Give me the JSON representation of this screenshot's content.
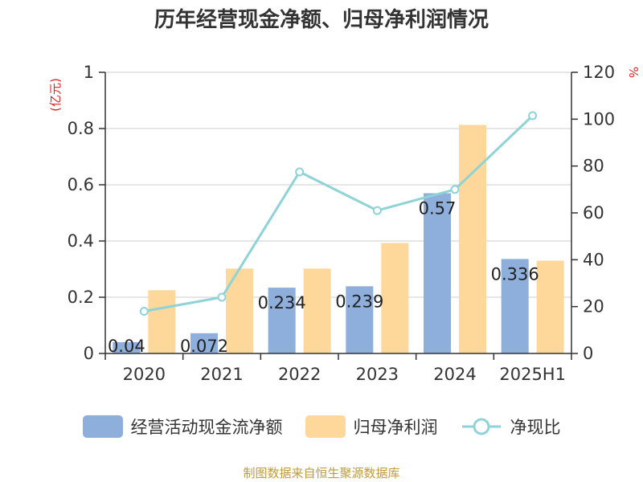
{
  "colors": {
    "cash": "#8eaedc",
    "profit": "#fdd89a",
    "ratio": "#8ed3d8",
    "unit": "#e02020",
    "grid": "#cccccc",
    "text": "#333333"
  },
  "chart_data": {
    "type": "bar",
    "title": "历年经营现金净额、归母净利润情况",
    "left_unit": "(亿元)",
    "right_unit": "%",
    "categories": [
      "2020",
      "2021",
      "2022",
      "2023",
      "2024",
      "2025H1"
    ],
    "y_left_ticks": [
      "0",
      "0.2",
      "0.4",
      "0.6",
      "0.8",
      "1"
    ],
    "y_right_ticks": [
      "0",
      "20",
      "40",
      "60",
      "80",
      "100",
      "120"
    ],
    "ylim_left": [
      0,
      1
    ],
    "ylim_right": [
      0,
      120
    ],
    "series": [
      {
        "name": "经营活动现金流净额",
        "type": "bar",
        "axis": "left",
        "values": [
          0.04,
          0.072,
          0.234,
          0.239,
          0.57,
          0.336
        ],
        "labels": [
          "0.04",
          "0.072",
          "0.234",
          "0.239",
          "0.57",
          "0.336"
        ]
      },
      {
        "name": "归母净利润",
        "type": "bar",
        "axis": "left",
        "values": [
          0.225,
          0.302,
          0.302,
          0.393,
          0.813,
          0.33
        ]
      },
      {
        "name": "净现比",
        "type": "line",
        "axis": "right",
        "values": [
          18,
          24,
          77.5,
          61,
          70,
          101.5
        ]
      }
    ],
    "grid": true,
    "legend_position": "bottom"
  },
  "source": "制图数据来自恒生聚源数据库"
}
